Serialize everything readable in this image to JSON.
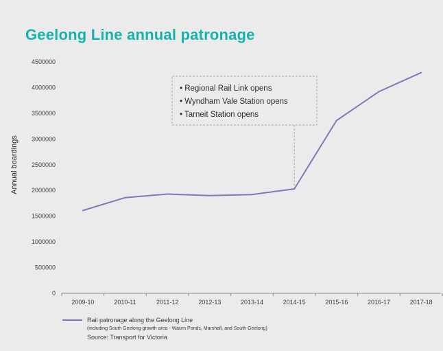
{
  "title": "Geelong Line annual patronage",
  "colors": {
    "title": "#16b3ae",
    "line": "#8b72b5",
    "annotation_box": "#a8a8a8",
    "background": "#ebebeb"
  },
  "chart_data": {
    "type": "line",
    "title": "Geelong Line annual patronage",
    "xlabel": "",
    "ylabel": "Annual boardings",
    "ylim": [
      0,
      4500000
    ],
    "yticks": [
      0,
      500000,
      1000000,
      1500000,
      2000000,
      2500000,
      3000000,
      3500000,
      4000000,
      4500000
    ],
    "ytick_labels": [
      "0",
      "500000",
      "1000000",
      "1500000",
      "2000000",
      "2500000",
      "3000000",
      "3500000",
      "4000000",
      "4500000"
    ],
    "categories": [
      "2009-10",
      "2010-11",
      "2011-12",
      "2012-13",
      "2013-14",
      "2014-15",
      "2015-16",
      "2016-17",
      "2017-18"
    ],
    "series": [
      {
        "name": "Rail patronage along the Geelong Line",
        "values": [
          1610000,
          1860000,
          1930000,
          1900000,
          1920000,
          2030000,
          3360000,
          3920000,
          4290000
        ]
      }
    ],
    "grid": false,
    "legend_position": "bottom-left",
    "annotations": {
      "category": "2014-15",
      "items": [
        "• Regional Rail Link opens",
        "• Wyndham Vale Station opens",
        "• Tarneit Station opens"
      ]
    }
  },
  "legend": {
    "label": "Rail patronage along the Geelong Line",
    "note": "(including South Geelong growth area - Waurn Ponds, Marshall, and South Geelong)",
    "source": "Source: Transport for Victoria"
  }
}
